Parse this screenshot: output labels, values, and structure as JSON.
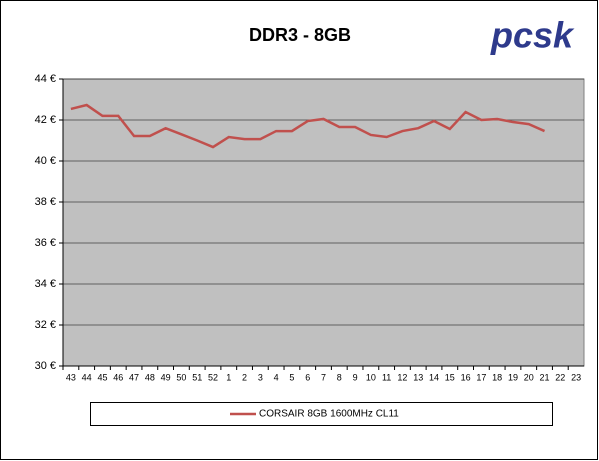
{
  "logo": "pcsk",
  "chart_data": {
    "type": "line",
    "title": "DDR3 - 8GB",
    "categories": [
      "43",
      "44",
      "45",
      "46",
      "47",
      "48",
      "49",
      "50",
      "51",
      "52",
      "1",
      "2",
      "3",
      "4",
      "5",
      "6",
      "7",
      "8",
      "9",
      "10",
      "11",
      "12",
      "13",
      "14",
      "15",
      "16",
      "17",
      "18",
      "19",
      "20",
      "21",
      "22",
      "23"
    ],
    "series": [
      {
        "name": "CORSAIR 8GB 1600MHz CL11",
        "color": "#c0504d",
        "values": [
          42.54,
          42.73,
          42.2,
          42.2,
          41.22,
          41.22,
          41.6,
          41.3,
          41.0,
          40.68,
          41.17,
          41.07,
          41.07,
          41.46,
          41.46,
          41.95,
          42.05,
          41.66,
          41.66,
          41.27,
          41.17,
          41.46,
          41.6,
          41.95,
          41.56,
          42.39,
          42.0,
          42.05,
          41.9,
          41.8,
          41.46,
          null,
          null
        ]
      }
    ],
    "ylim": [
      30,
      44
    ],
    "yticks": [
      {
        "value": 30,
        "label": "30 €"
      },
      {
        "value": 32,
        "label": "32 €"
      },
      {
        "value": 34,
        "label": "34 €"
      },
      {
        "value": 36,
        "label": "36 €"
      },
      {
        "value": 38,
        "label": "38 €"
      },
      {
        "value": 40,
        "label": "40 €"
      },
      {
        "value": 42,
        "label": "42 €"
      },
      {
        "value": 44,
        "label": "44 €"
      }
    ],
    "grid": true,
    "plot_color": "#c0c0c0",
    "legend": "bottom"
  }
}
